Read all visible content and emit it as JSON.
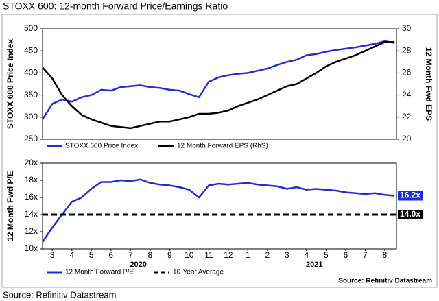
{
  "chart_data": [
    {
      "type": "line",
      "title": "STOXX 600: 12-month Forward Price/Earnings Ratio",
      "ylabel": "STOXX 600 Price Index",
      "y2label": "12 Month Fwd EPS",
      "x": [
        0,
        0.5,
        1,
        1.5,
        2,
        2.5,
        3,
        3.5,
        4,
        4.5,
        5,
        5.5,
        6,
        6.5,
        7,
        7.5,
        8,
        8.5,
        9,
        9.5,
        10,
        10.5,
        11,
        11.5,
        12,
        12.5,
        13,
        13.5,
        14,
        14.5,
        15,
        15.5,
        16,
        16.5,
        17,
        17.5,
        18
      ],
      "xlim": [
        0,
        18.1
      ],
      "ylim": [
        250,
        500
      ],
      "yticks": [
        250,
        300,
        350,
        400,
        450,
        500
      ],
      "y2lim": [
        20,
        30
      ],
      "y2ticks": [
        20,
        22,
        24,
        26,
        28,
        30
      ],
      "series": [
        {
          "name": "STOXX 600 Price Index",
          "color": "#1f2fd6",
          "values": [
            295,
            330,
            340,
            335,
            345,
            350,
            362,
            360,
            368,
            370,
            372,
            368,
            366,
            362,
            360,
            352,
            345,
            380,
            390,
            395,
            398,
            400,
            405,
            410,
            418,
            425,
            430,
            440,
            443,
            448,
            452,
            455,
            458,
            462,
            466,
            472,
            468
          ]
        },
        {
          "name": "12 Month Forward EPS (RhS)",
          "color": "#000000",
          "axis": "y2",
          "values": [
            26.5,
            25.5,
            24,
            23,
            22.2,
            21.8,
            21.5,
            21.2,
            21.1,
            21,
            21.2,
            21.4,
            21.6,
            21.6,
            21.8,
            22,
            22.3,
            22.3,
            22.4,
            22.6,
            23,
            23.3,
            23.6,
            24,
            24.4,
            24.8,
            25,
            25.5,
            26,
            26.6,
            27,
            27.3,
            27.6,
            28,
            28.4,
            28.8,
            28.8
          ]
        }
      ]
    },
    {
      "type": "line",
      "ylabel": "12 Month Fwd P/E",
      "source": "Source: Refinitiv Datastream",
      "x": [
        0,
        0.5,
        1,
        1.5,
        2,
        2.5,
        3,
        3.5,
        4,
        4.5,
        5,
        5.5,
        6,
        6.5,
        7,
        7.5,
        8,
        8.5,
        9,
        9.5,
        10,
        10.5,
        11,
        11.5,
        12,
        12.5,
        13,
        13.5,
        14,
        14.5,
        15,
        15.5,
        16,
        16.5,
        17,
        17.5,
        18
      ],
      "xlim": [
        0,
        18.1
      ],
      "xticks": [
        {
          "value": 0.5,
          "label": "3"
        },
        {
          "value": 1.5,
          "label": "4"
        },
        {
          "value": 2.5,
          "label": "5"
        },
        {
          "value": 3.5,
          "label": "6"
        },
        {
          "value": 4.5,
          "label": "7"
        },
        {
          "value": 5.5,
          "label": "8"
        },
        {
          "value": 6.5,
          "label": "9"
        },
        {
          "value": 7.5,
          "label": "10"
        },
        {
          "value": 8.5,
          "label": "11"
        },
        {
          "value": 9.5,
          "label": "12"
        },
        {
          "value": 10.5,
          "label": "1"
        },
        {
          "value": 11.5,
          "label": "2"
        },
        {
          "value": 12.5,
          "label": "3"
        },
        {
          "value": 13.5,
          "label": "4"
        },
        {
          "value": 14.5,
          "label": "5"
        },
        {
          "value": 15.5,
          "label": "6"
        },
        {
          "value": 16.5,
          "label": "7"
        },
        {
          "value": 17.5,
          "label": "8"
        }
      ],
      "xgroups": [
        {
          "value": 4.9,
          "label": "2020"
        },
        {
          "value": 13.9,
          "label": "2021"
        }
      ],
      "ylim": [
        10,
        20
      ],
      "yticks": [
        {
          "value": 10,
          "label": "10x"
        },
        {
          "value": 12,
          "label": "12x"
        },
        {
          "value": 14,
          "label": "14x"
        },
        {
          "value": 16,
          "label": "16x"
        },
        {
          "value": 18,
          "label": "18x"
        },
        {
          "value": 20,
          "label": "20x"
        }
      ],
      "series": [
        {
          "name": "12 Month Forward P/E",
          "color": "#1f2fd6",
          "values": [
            10.8,
            12.5,
            14,
            15.5,
            16,
            17,
            17.8,
            17.8,
            18,
            17.9,
            18.1,
            17.7,
            17.5,
            17.4,
            17.2,
            16.9,
            16,
            17.4,
            17.6,
            17.5,
            17.6,
            17.7,
            17.5,
            17.4,
            17.3,
            17,
            17.2,
            16.9,
            17,
            16.9,
            16.8,
            16.6,
            16.5,
            16.4,
            16.5,
            16.3,
            16.2
          ],
          "value_labels": [
            null,
            null,
            null,
            null,
            null,
            null,
            null,
            null,
            null,
            null,
            null,
            null,
            null,
            null,
            null,
            null,
            null,
            null,
            null,
            null,
            null,
            null,
            null,
            null,
            null,
            null,
            null,
            null,
            null,
            null,
            null,
            null,
            null,
            null,
            null,
            null,
            "16.2x"
          ]
        },
        {
          "name": "10-Year Average",
          "color": "#000000",
          "dashed": true,
          "value": 14.0,
          "value_label": "14.0x"
        }
      ]
    }
  ],
  "footer": "Source: Refinitiv Datastream"
}
